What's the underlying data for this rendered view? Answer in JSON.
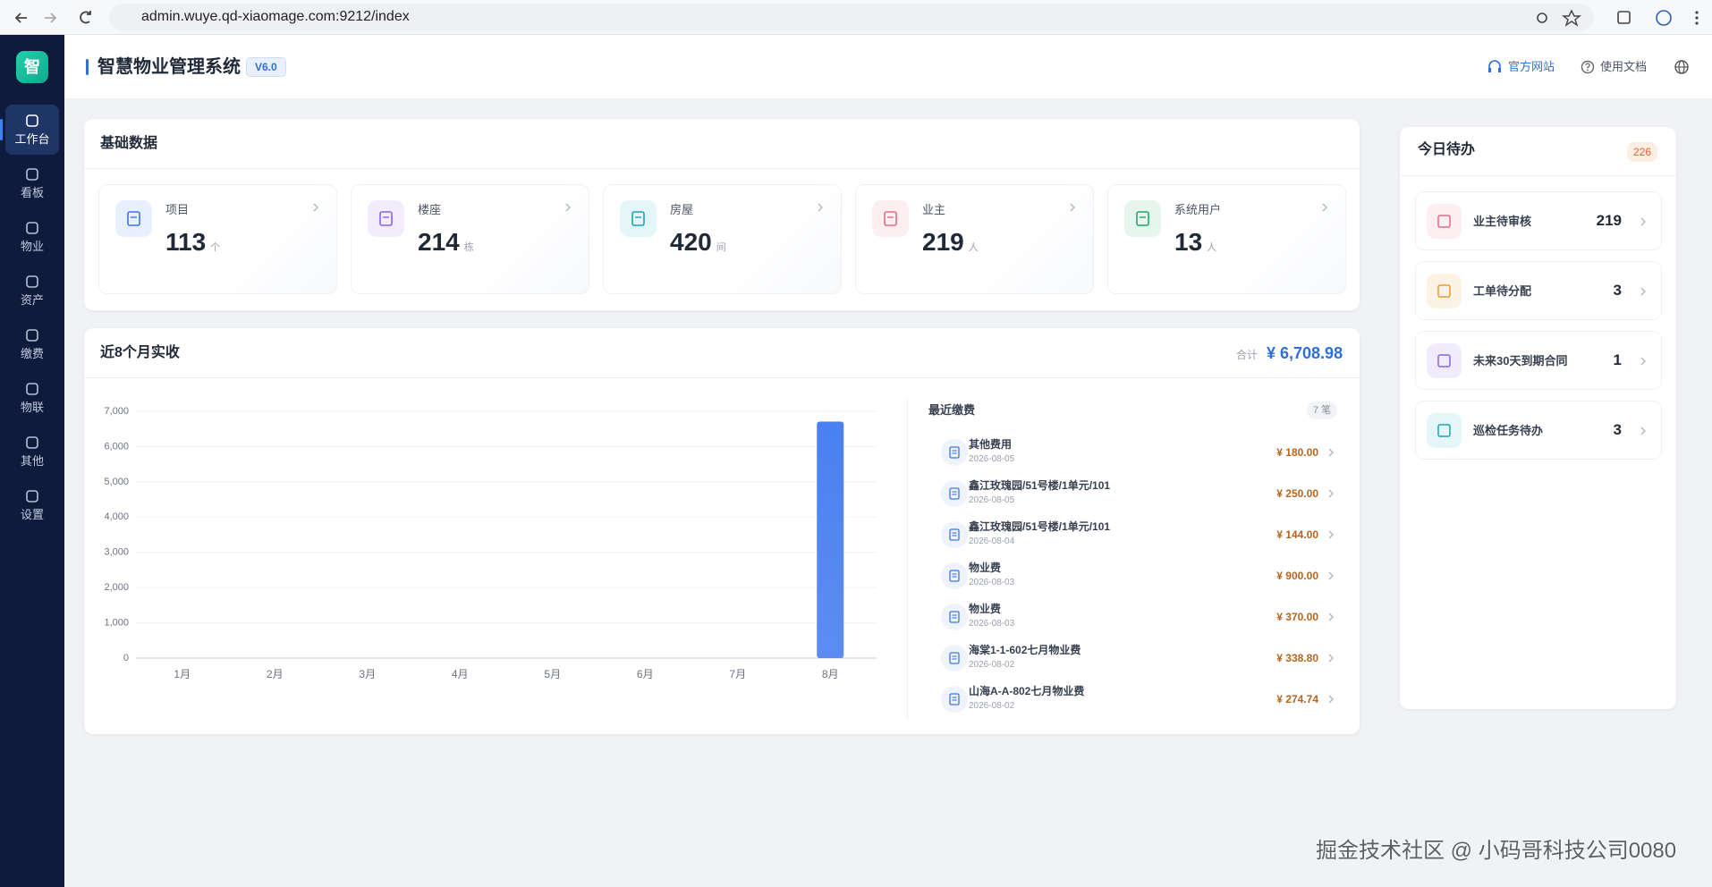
{
  "browser": {
    "url": "admin.wuye.qd-xiaomage.com:9212/index"
  },
  "sidebar": {
    "logo": "智",
    "items": [
      "工作台",
      "看板",
      "物业",
      "资产",
      "缴费",
      "物联",
      "其他",
      "设置"
    ]
  },
  "header": {
    "title": "智慧物业管理系统",
    "version": "V6.0",
    "links": [
      "官方网站",
      "使用文档"
    ]
  },
  "basic_data": {
    "title": "基础数据",
    "cards": [
      {
        "label": "项目",
        "value": 113,
        "unit": "个"
      },
      {
        "label": "楼座",
        "value": 214,
        "unit": "栋"
      },
      {
        "label": "房屋",
        "value": 420,
        "unit": "间"
      },
      {
        "label": "业主",
        "value": 219,
        "unit": "人"
      },
      {
        "label": "系统用户",
        "value": 13,
        "unit": "人"
      }
    ]
  },
  "revenue": {
    "total_label": "合计",
    "total": "¥ 6,708.98"
  },
  "chart_data": {
    "type": "bar",
    "title": "近8个月实收",
    "categories": [
      "1月",
      "2月",
      "3月",
      "4月",
      "5月",
      "6月",
      "7月",
      "8月"
    ],
    "values": [
      0,
      0,
      0,
      0,
      0,
      0,
      0,
      6708.98
    ],
    "color": "#4a80f0",
    "ylim": [
      0,
      7000
    ],
    "yticks": [
      0,
      {
        "value": 1000,
        "label": "1,000"
      },
      {
        "value": 2000,
        "label": "2,000"
      },
      {
        "value": 3000,
        "label": "3,000"
      },
      {
        "value": 4000,
        "label": "4,000"
      },
      {
        "value": 5000,
        "label": "5,000"
      },
      {
        "value": 6000,
        "label": "6,000"
      },
      {
        "value": 7000,
        "label": "7,000"
      }
    ],
    "grid": true
  },
  "recent_payments": {
    "title": "最近缴费",
    "count": "7 笔",
    "items": [
      {
        "name": "其他费用",
        "date": "2026-08-05",
        "amount": "¥ 180.00"
      },
      {
        "name": "鑫江玫瑰园/51号楼/1单元/101",
        "date": "2026-08-05",
        "amount": "¥ 250.00"
      },
      {
        "name": "鑫江玫瑰园/51号楼/1单元/101",
        "date": "2026-08-04",
        "amount": "¥ 144.00"
      },
      {
        "name": "物业费",
        "date": "2026-08-03",
        "amount": "¥ 900.00"
      },
      {
        "name": "物业费",
        "date": "2026-08-03",
        "amount": "¥ 370.00"
      },
      {
        "name": "海棠1-1-602七月物业费",
        "date": "2026-08-02",
        "amount": "¥ 338.80"
      },
      {
        "name": "山海A-A-802七月物业费",
        "date": "2026-08-02",
        "amount": "¥ 274.74"
      }
    ]
  },
  "todo": {
    "title": "今日待办",
    "badge": 226,
    "items": [
      {
        "label": "业主待审核",
        "count": 219
      },
      {
        "label": "工单待分配",
        "count": 3
      },
      {
        "label": "未来30天到期合同",
        "count": 1
      },
      {
        "label": "巡检任务待办",
        "count": 3
      }
    ]
  },
  "watermark": "掘金技术社区 @ 小码哥科技公司0080"
}
